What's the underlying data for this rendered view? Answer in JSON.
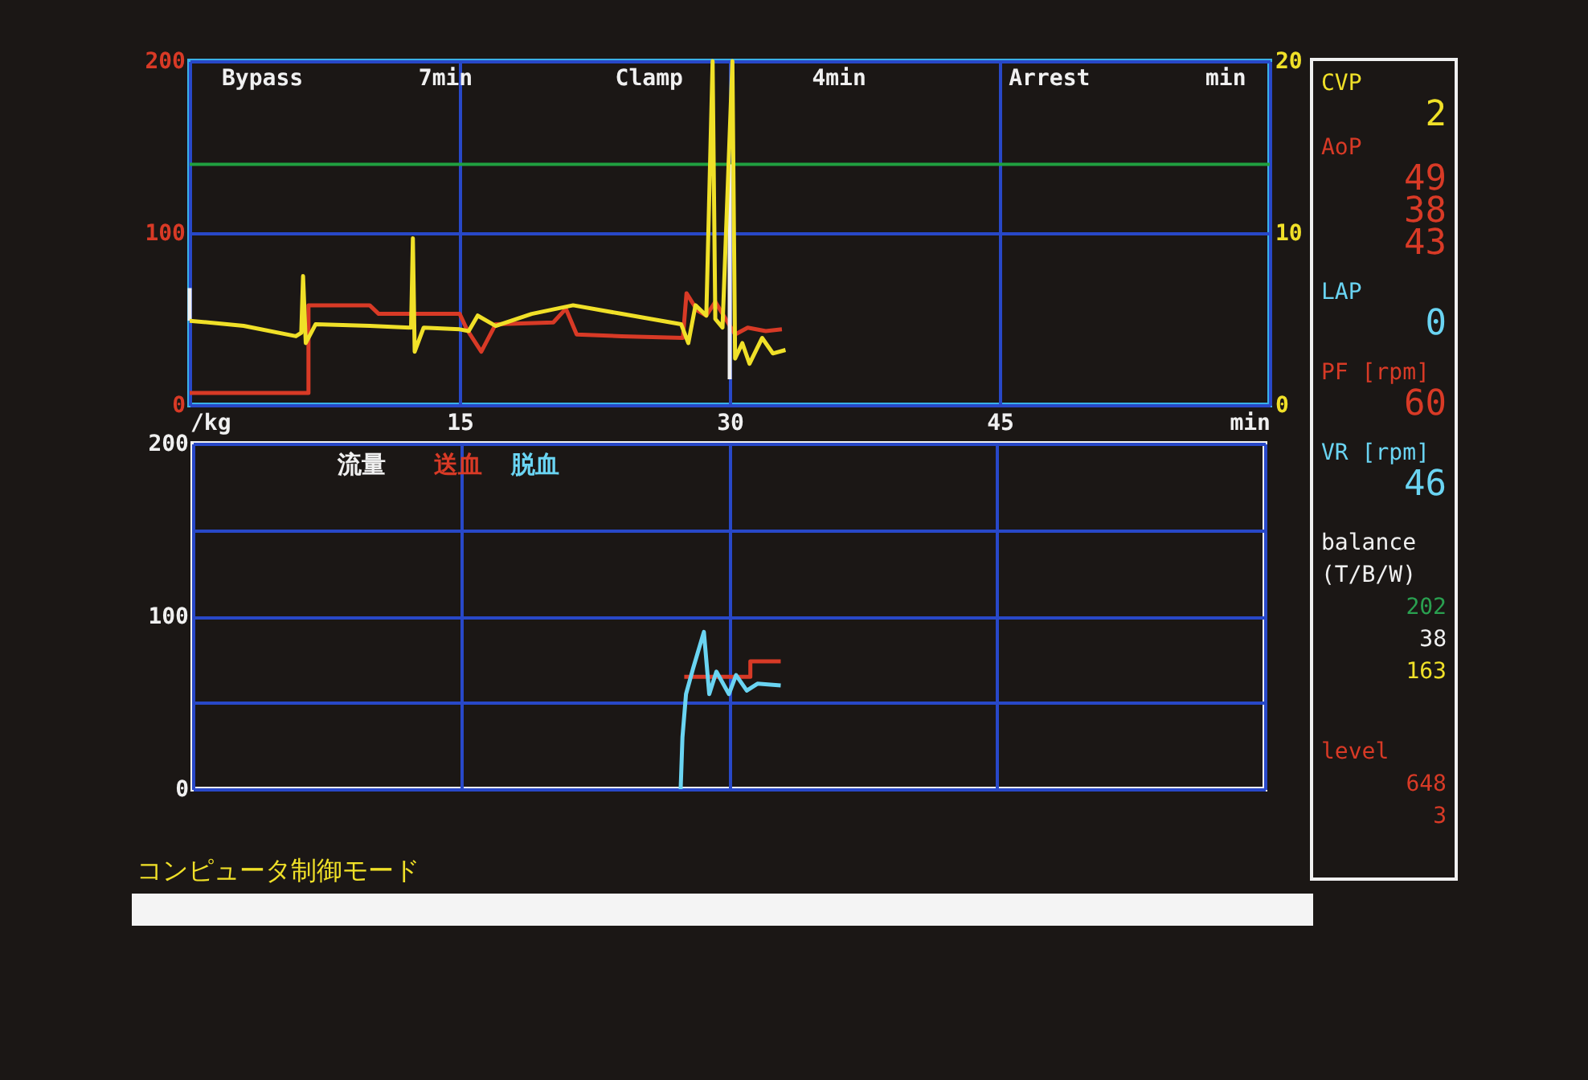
{
  "chart_data": [
    {
      "type": "line",
      "annotations": [
        "Bypass",
        "7min",
        "Clamp",
        "4min",
        "Arrest",
        "min"
      ],
      "xlim": [
        0,
        60
      ],
      "xticks": [
        {
          "value": 0,
          "label": "/kg"
        },
        15,
        30,
        45,
        {
          "value": 60,
          "label": "min"
        }
      ],
      "ylim": [
        0,
        200
      ],
      "yticks": [
        0,
        100,
        200
      ],
      "y2lim": [
        0,
        20
      ],
      "y2ticks": [
        0,
        10,
        20
      ],
      "grid": true,
      "ref_lines": [
        {
          "axis": "y",
          "value": 140,
          "color": "#20a040"
        }
      ],
      "series": [
        {
          "color": "#d83a26",
          "x": [
            0,
            6.6,
            6.6,
            10,
            10.5,
            15,
            15.4,
            16.2,
            17,
            20.2,
            20.9,
            21.5,
            24,
            27.4,
            27.6,
            28.2,
            28.7,
            29.2,
            30.3,
            31,
            32,
            32.9
          ],
          "values": [
            7,
            7,
            58,
            58,
            53,
            53,
            44,
            31,
            47,
            48,
            56,
            41,
            40,
            39,
            65,
            55,
            52,
            60,
            41,
            45,
            43,
            44
          ]
        },
        {
          "color": "#f0e028",
          "axis": "y2",
          "x": [
            0,
            3,
            5.9,
            6.2,
            6.3,
            6.45,
            7,
            10,
            12.3,
            12.4,
            12.5,
            13,
            15,
            15.5,
            16,
            17,
            19,
            21.3,
            24,
            27.3,
            27.7,
            28.1,
            28.7,
            29.05,
            29.2,
            29.6,
            30.15,
            30.3,
            30.7,
            31.1,
            31.8,
            32.4,
            33.1
          ],
          "values": [
            4.9,
            4.6,
            4.0,
            4.2,
            7.5,
            3.6,
            4.7,
            4.6,
            4.5,
            9.7,
            3.1,
            4.5,
            4.4,
            4.3,
            5.2,
            4.6,
            5.3,
            5.8,
            5.3,
            4.7,
            3.6,
            5.8,
            5.2,
            20,
            5.0,
            4.5,
            20,
            2.7,
            3.6,
            2.4,
            3.9,
            3.0,
            3.2
          ]
        },
        {
          "color": "#f0f0f0",
          "x": [
            0,
            0
          ],
          "values": [
            68,
            49
          ]
        },
        {
          "color": "#f0f0f0",
          "x": [
            30,
            30
          ],
          "values": [
            140,
            15
          ]
        }
      ]
    },
    {
      "type": "line",
      "title": "流量",
      "legend": "top left",
      "xlim": [
        0,
        60
      ],
      "xticks": [
        0,
        15,
        30,
        45,
        60
      ],
      "tick_labels": "y",
      "ylim": [
        0,
        200
      ],
      "yticks": [
        0,
        {
          "value": 50,
          "label": null
        },
        100,
        {
          "value": 150,
          "label": null
        },
        200
      ],
      "grid": true,
      "annotations": [
        "コンピュータ制御モード"
      ],
      "series": [
        {
          "name": "送血",
          "color": "#d83a26",
          "x": [
            27.5,
            31.2,
            31.2,
            32.9
          ],
          "values": [
            65,
            65,
            74,
            74
          ]
        },
        {
          "name": "脱血",
          "color": "#6ad4f2",
          "x": [
            27.3,
            27.4,
            27.6,
            28.0,
            28.6,
            28.9,
            29.3,
            30.0,
            30.4,
            31.0,
            31.6,
            32.9
          ],
          "values": [
            0,
            30,
            55,
            70,
            91,
            55,
            68,
            55,
            66,
            57,
            61,
            60
          ]
        }
      ]
    },
    {
      "type": "other",
      "annotations": [
        "CVP",
        "2",
        "AoP",
        "49",
        "38",
        "43",
        "LAP",
        "0",
        "PF [rpm]",
        "60",
        "VR [rpm]",
        "46",
        "balance",
        "(T/B/W)",
        "202",
        "38",
        "163",
        "level",
        "648",
        "3"
      ],
      "colors": [
        "#f0e028",
        "#f0e028",
        "#d83a26",
        "#d83a26",
        "#d83a26",
        "#d83a26",
        "#6ad4f2",
        "#6ad4f2",
        "#d83a26",
        "#d83a26",
        "#6ad4f2",
        "#6ad4f2",
        "#f0f0f0",
        "#f0f0f0",
        "#2aa050",
        "#f0f0f0",
        "#f0e028",
        "#d83a26",
        "#d83a26",
        "#d83a26"
      ]
    }
  ]
}
